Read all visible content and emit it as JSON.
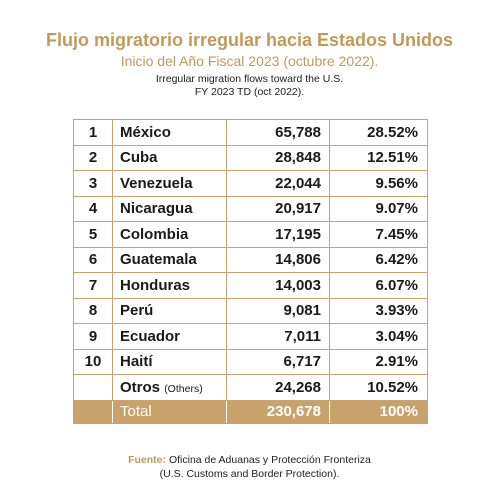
{
  "header": {
    "title": "Flujo migratorio irregular hacia Estados Unidos",
    "subtitle": "Inicio del Año Fiscal 2023 (octubre 2022).",
    "english_line1": "Irregular migration flows toward the U.S.",
    "english_line2": "FY 2023 TD (oct 2022)."
  },
  "table": {
    "rows": [
      {
        "rank": "1",
        "country": "México",
        "value": "65,788",
        "percent": "28.52%"
      },
      {
        "rank": "2",
        "country": "Cuba",
        "value": "28,848",
        "percent": "12.51%"
      },
      {
        "rank": "3",
        "country": "Venezuela",
        "value": "22,044",
        "percent": "9.56%"
      },
      {
        "rank": "4",
        "country": "Nicaragua",
        "value": "20,917",
        "percent": "9.07%"
      },
      {
        "rank": "5",
        "country": "Colombia",
        "value": "17,195",
        "percent": "7.45%"
      },
      {
        "rank": "6",
        "country": "Guatemala",
        "value": "14,806",
        "percent": "6.42%"
      },
      {
        "rank": "7",
        "country": "Honduras",
        "value": "14,003",
        "percent": "6.07%"
      },
      {
        "rank": "8",
        "country": "Perú",
        "value": "9,081",
        "percent": "3.93%"
      },
      {
        "rank": "9",
        "country": "Ecuador",
        "value": "7,011",
        "percent": "3.04%"
      },
      {
        "rank": "10",
        "country": "Haití",
        "value": "6,717",
        "percent": "2.91%"
      }
    ],
    "others": {
      "label": "Otros",
      "note": "(Others)",
      "value": "24,268",
      "percent": "10.52%"
    },
    "total": {
      "label": "Total",
      "value": "230,678",
      "percent": "100%"
    }
  },
  "source": {
    "label": "Fuente:",
    "text": "Oficina de Aduanas y Protección Fronteriza",
    "text_en": "(U.S. Customs and Border Protection)."
  },
  "colors": {
    "accent": "#c19a5b",
    "total_bg": "#c9a26b",
    "border": "#c8a46c"
  }
}
